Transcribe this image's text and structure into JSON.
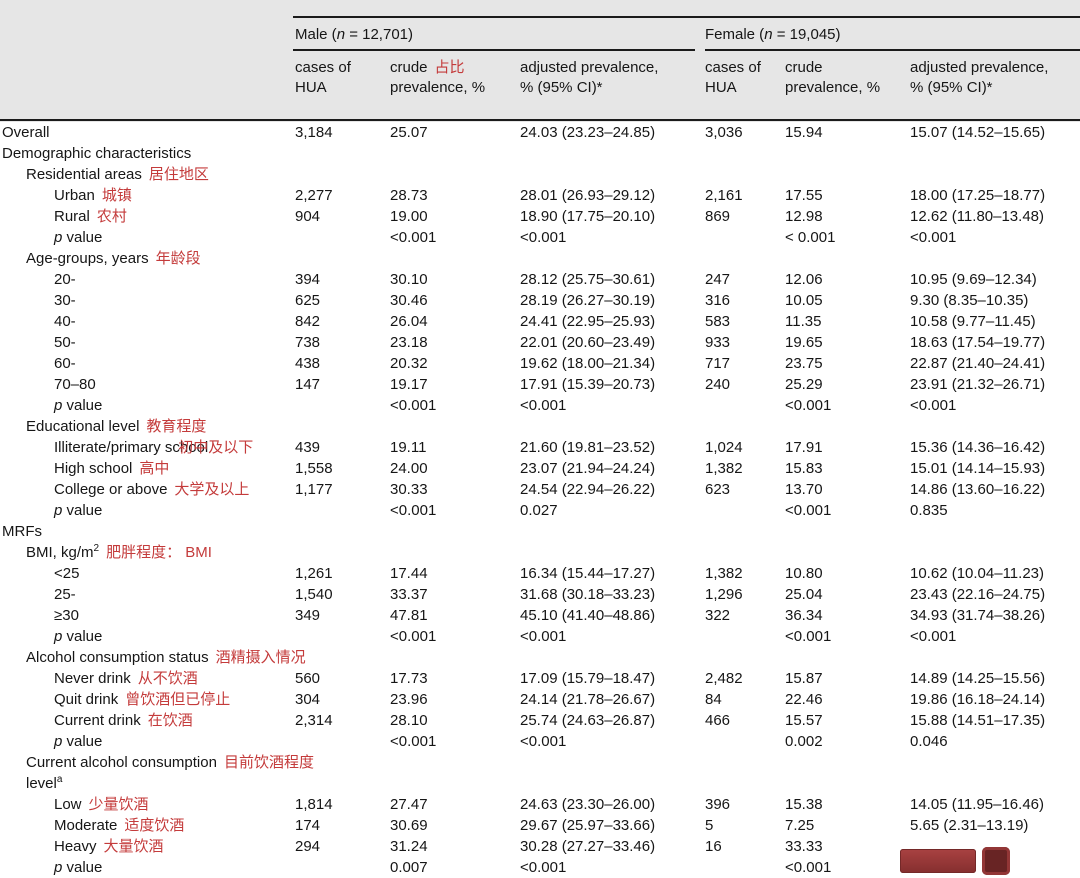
{
  "colors": {
    "annotation": "#c43b3b",
    "header_bg": "#e6e6e6",
    "rule": "#1b1b1b"
  },
  "header": {
    "male": {
      "prefix": "Male (",
      "n": "n",
      "suffix": " = 12,701)"
    },
    "female": {
      "prefix": "Female (",
      "n": "n",
      "suffix": " = 19,045)"
    },
    "male_cols": {
      "cases_l1": "cases of",
      "cases_l2": "HUA",
      "crude_l1": "crude",
      "crude_annotation": "占比",
      "crude_l2": "prevalence, %",
      "adj_l1": "adjusted prevalence,",
      "adj_l2": "% (95% CI)*"
    },
    "female_cols": {
      "cases_l1": "cases of",
      "cases_l2": "HUA",
      "crude_l1": "crude",
      "crude_l2": "prevalence, %",
      "adj_l1": "adjusted prevalence,",
      "adj_l2": "% (95% CI)*"
    }
  },
  "table": {
    "rows": [
      {
        "type": "data",
        "indent": 0,
        "label": "Overall",
        "m_cases": "3,184",
        "m_crude": "25.07",
        "m_adj": "24.03 (23.23–24.85)",
        "f_cases": "3,036",
        "f_crude": "15.94",
        "f_adj": "15.07 (14.52–15.65)"
      },
      {
        "type": "section",
        "indent": 0,
        "label": "Demographic characteristics"
      },
      {
        "type": "section",
        "indent": 1,
        "label": "Residential areas",
        "annotation": "居住地区"
      },
      {
        "type": "data",
        "indent": 2,
        "label": "Urban",
        "annotation": "城镇",
        "m_cases": "2,277",
        "m_crude": "28.73",
        "m_adj": "28.01 (26.93–29.12)",
        "f_cases": "2,161",
        "f_crude": "17.55",
        "f_adj": "18.00 (17.25–18.77)"
      },
      {
        "type": "data",
        "indent": 2,
        "label": "Rural",
        "annotation": "农村",
        "m_cases": "904",
        "m_crude": "19.00",
        "m_adj": "18.90 (17.75–20.10)",
        "f_cases": "869",
        "f_crude": "12.98",
        "f_adj": "12.62 (11.80–13.48)"
      },
      {
        "type": "pvalue",
        "indent": 2,
        "label": "p value",
        "m_crude": "<0.001",
        "m_adj": "<0.001",
        "f_crude": "< 0.001",
        "f_adj": "<0.001"
      },
      {
        "type": "section",
        "indent": 1,
        "label": "Age-groups, years",
        "annotation": "年龄段"
      },
      {
        "type": "data",
        "indent": 2,
        "label": "20-",
        "m_cases": "394",
        "m_crude": "30.10",
        "m_adj": "28.12 (25.75–30.61)",
        "f_cases": "247",
        "f_crude": "12.06",
        "f_adj": "10.95 (9.69–12.34)"
      },
      {
        "type": "data",
        "indent": 2,
        "label": "30-",
        "m_cases": "625",
        "m_crude": "30.46",
        "m_adj": "28.19 (26.27–30.19)",
        "f_cases": "316",
        "f_crude": "10.05",
        "f_adj": "9.30 (8.35–10.35)"
      },
      {
        "type": "data",
        "indent": 2,
        "label": "40-",
        "m_cases": "842",
        "m_crude": "26.04",
        "m_adj": "24.41 (22.95–25.93)",
        "f_cases": "583",
        "f_crude": "11.35",
        "f_adj": "10.58 (9.77–11.45)"
      },
      {
        "type": "data",
        "indent": 2,
        "label": "50-",
        "m_cases": "738",
        "m_crude": "23.18",
        "m_adj": "22.01 (20.60–23.49)",
        "f_cases": "933",
        "f_crude": "19.65",
        "f_adj": "18.63 (17.54–19.77)"
      },
      {
        "type": "data",
        "indent": 2,
        "label": "60-",
        "m_cases": "438",
        "m_crude": "20.32",
        "m_adj": "19.62 (18.00–21.34)",
        "f_cases": "717",
        "f_crude": "23.75",
        "f_adj": "22.87 (21.40–24.41)"
      },
      {
        "type": "data",
        "indent": 2,
        "label": "70–80",
        "m_cases": "147",
        "m_crude": "19.17",
        "m_adj": "17.91 (15.39–20.73)",
        "f_cases": "240",
        "f_crude": "25.29",
        "f_adj": "23.91 (21.32–26.71)"
      },
      {
        "type": "pvalue",
        "indent": 2,
        "label": "p value",
        "m_crude": "<0.001",
        "m_adj": "<0.001",
        "f_crude": "<0.001",
        "f_adj": "<0.001"
      },
      {
        "type": "section",
        "indent": 1,
        "label": "Educational level",
        "annotation": "教育程度"
      },
      {
        "type": "data",
        "indent": 2,
        "label": "Illiterate/primary school",
        "annotation": "初中及以下",
        "overlap": true,
        "m_cases": "439",
        "m_crude": "19.11",
        "m_adj": "21.60 (19.81–23.52)",
        "f_cases": "1,024",
        "f_crude": "17.91",
        "f_adj": "15.36 (14.36–16.42)"
      },
      {
        "type": "data",
        "indent": 2,
        "label": "High school",
        "annotation": "高中",
        "m_cases": "1,558",
        "m_crude": "24.00",
        "m_adj": "23.07 (21.94–24.24)",
        "f_cases": "1,382",
        "f_crude": "15.83",
        "f_adj": "15.01 (14.14–15.93)"
      },
      {
        "type": "data",
        "indent": 2,
        "label": "College or above",
        "annotation": "大学及以上",
        "m_cases": "1,177",
        "m_crude": "30.33",
        "m_adj": "24.54 (22.94–26.22)",
        "f_cases": "623",
        "f_crude": "13.70",
        "f_adj": "14.86 (13.60–16.22)"
      },
      {
        "type": "pvalue",
        "indent": 2,
        "label": "p value",
        "m_crude": "<0.001",
        "m_adj": "0.027",
        "f_crude": "<0.001",
        "f_adj": "0.835"
      },
      {
        "type": "section",
        "indent": 0,
        "label": "MRFs"
      },
      {
        "type": "section",
        "indent": 1,
        "label": "BMI, kg/m",
        "sup": "2",
        "annotation": "肥胖程度： BMI"
      },
      {
        "type": "data",
        "indent": 2,
        "label": "<25",
        "m_cases": "1,261",
        "m_crude": "17.44",
        "m_adj": "16.34 (15.44–17.27)",
        "f_cases": "1,382",
        "f_crude": "10.80",
        "f_adj": "10.62 (10.04–11.23)"
      },
      {
        "type": "data",
        "indent": 2,
        "label": "25-",
        "m_cases": "1,540",
        "m_crude": "33.37",
        "m_adj": "31.68 (30.18–33.23)",
        "f_cases": "1,296",
        "f_crude": "25.04",
        "f_adj": "23.43 (22.16–24.75)"
      },
      {
        "type": "data",
        "indent": 2,
        "label": "≥30",
        "m_cases": "349",
        "m_crude": "47.81",
        "m_adj": "45.10 (41.40–48.86)",
        "f_cases": "322",
        "f_crude": "36.34",
        "f_adj": "34.93 (31.74–38.26)"
      },
      {
        "type": "pvalue",
        "indent": 2,
        "label": "p value",
        "m_crude": "<0.001",
        "m_adj": "<0.001",
        "f_crude": "<0.001",
        "f_adj": "<0.001"
      },
      {
        "type": "section",
        "indent": 1,
        "label": "Alcohol consumption status",
        "annotation": "酒精摄入情况"
      },
      {
        "type": "data",
        "indent": 2,
        "label": "Never drink",
        "annotation": "从不饮酒",
        "m_cases": "560",
        "m_crude": "17.73",
        "m_adj": "17.09 (15.79–18.47)",
        "f_cases": "2,482",
        "f_crude": "15.87",
        "f_adj": "14.89 (14.25–15.56)"
      },
      {
        "type": "data",
        "indent": 2,
        "label": "Quit drink",
        "annotation": "曾饮酒但已停止",
        "m_cases": "304",
        "m_crude": "23.96",
        "m_adj": "24.14 (21.78–26.67)",
        "f_cases": "84",
        "f_crude": "22.46",
        "f_adj": "19.86 (16.18–24.14)"
      },
      {
        "type": "data",
        "indent": 2,
        "label": "Current drink",
        "annotation": "在饮酒",
        "m_cases": "2,314",
        "m_crude": "28.10",
        "m_adj": "25.74 (24.63–26.87)",
        "f_cases": "466",
        "f_crude": "15.57",
        "f_adj": "15.88 (14.51–17.35)"
      },
      {
        "type": "pvalue",
        "indent": 2,
        "label": "p value",
        "m_crude": "<0.001",
        "m_adj": "<0.001",
        "f_crude": "0.002",
        "f_adj": "0.046"
      },
      {
        "type": "section",
        "indent": 1,
        "label": "Current alcohol consumption",
        "annotation": "目前饮酒程度",
        "line2": "level",
        "line2_sup": "a"
      },
      {
        "type": "data",
        "indent": 2,
        "label": "Low",
        "annotation": "少量饮酒",
        "m_cases": "1,814",
        "m_crude": "27.47",
        "m_adj": "24.63 (23.30–26.00)",
        "f_cases": "396",
        "f_crude": "15.38",
        "f_adj": "14.05 (11.95–16.46)"
      },
      {
        "type": "data",
        "indent": 2,
        "label": "Moderate",
        "annotation": "适度饮酒",
        "m_cases": "174",
        "m_crude": "30.69",
        "m_adj": "29.67 (25.97–33.66)",
        "f_cases": "5",
        "f_crude": "7.25",
        "f_adj": "5.65 (2.31–13.19)"
      },
      {
        "type": "data",
        "indent": 2,
        "label": "Heavy",
        "annotation": "大量饮酒",
        "m_cases": "294",
        "m_crude": "31.24",
        "m_adj": "30.28 (27.27–33.46)",
        "f_cases": "16",
        "f_crude": "33.33",
        "f_adj": ""
      },
      {
        "type": "pvalue",
        "indent": 2,
        "label": "p value",
        "m_crude": "0.007",
        "m_adj": "<0.001",
        "f_crude": "<0.001",
        "f_adj": ""
      }
    ]
  }
}
